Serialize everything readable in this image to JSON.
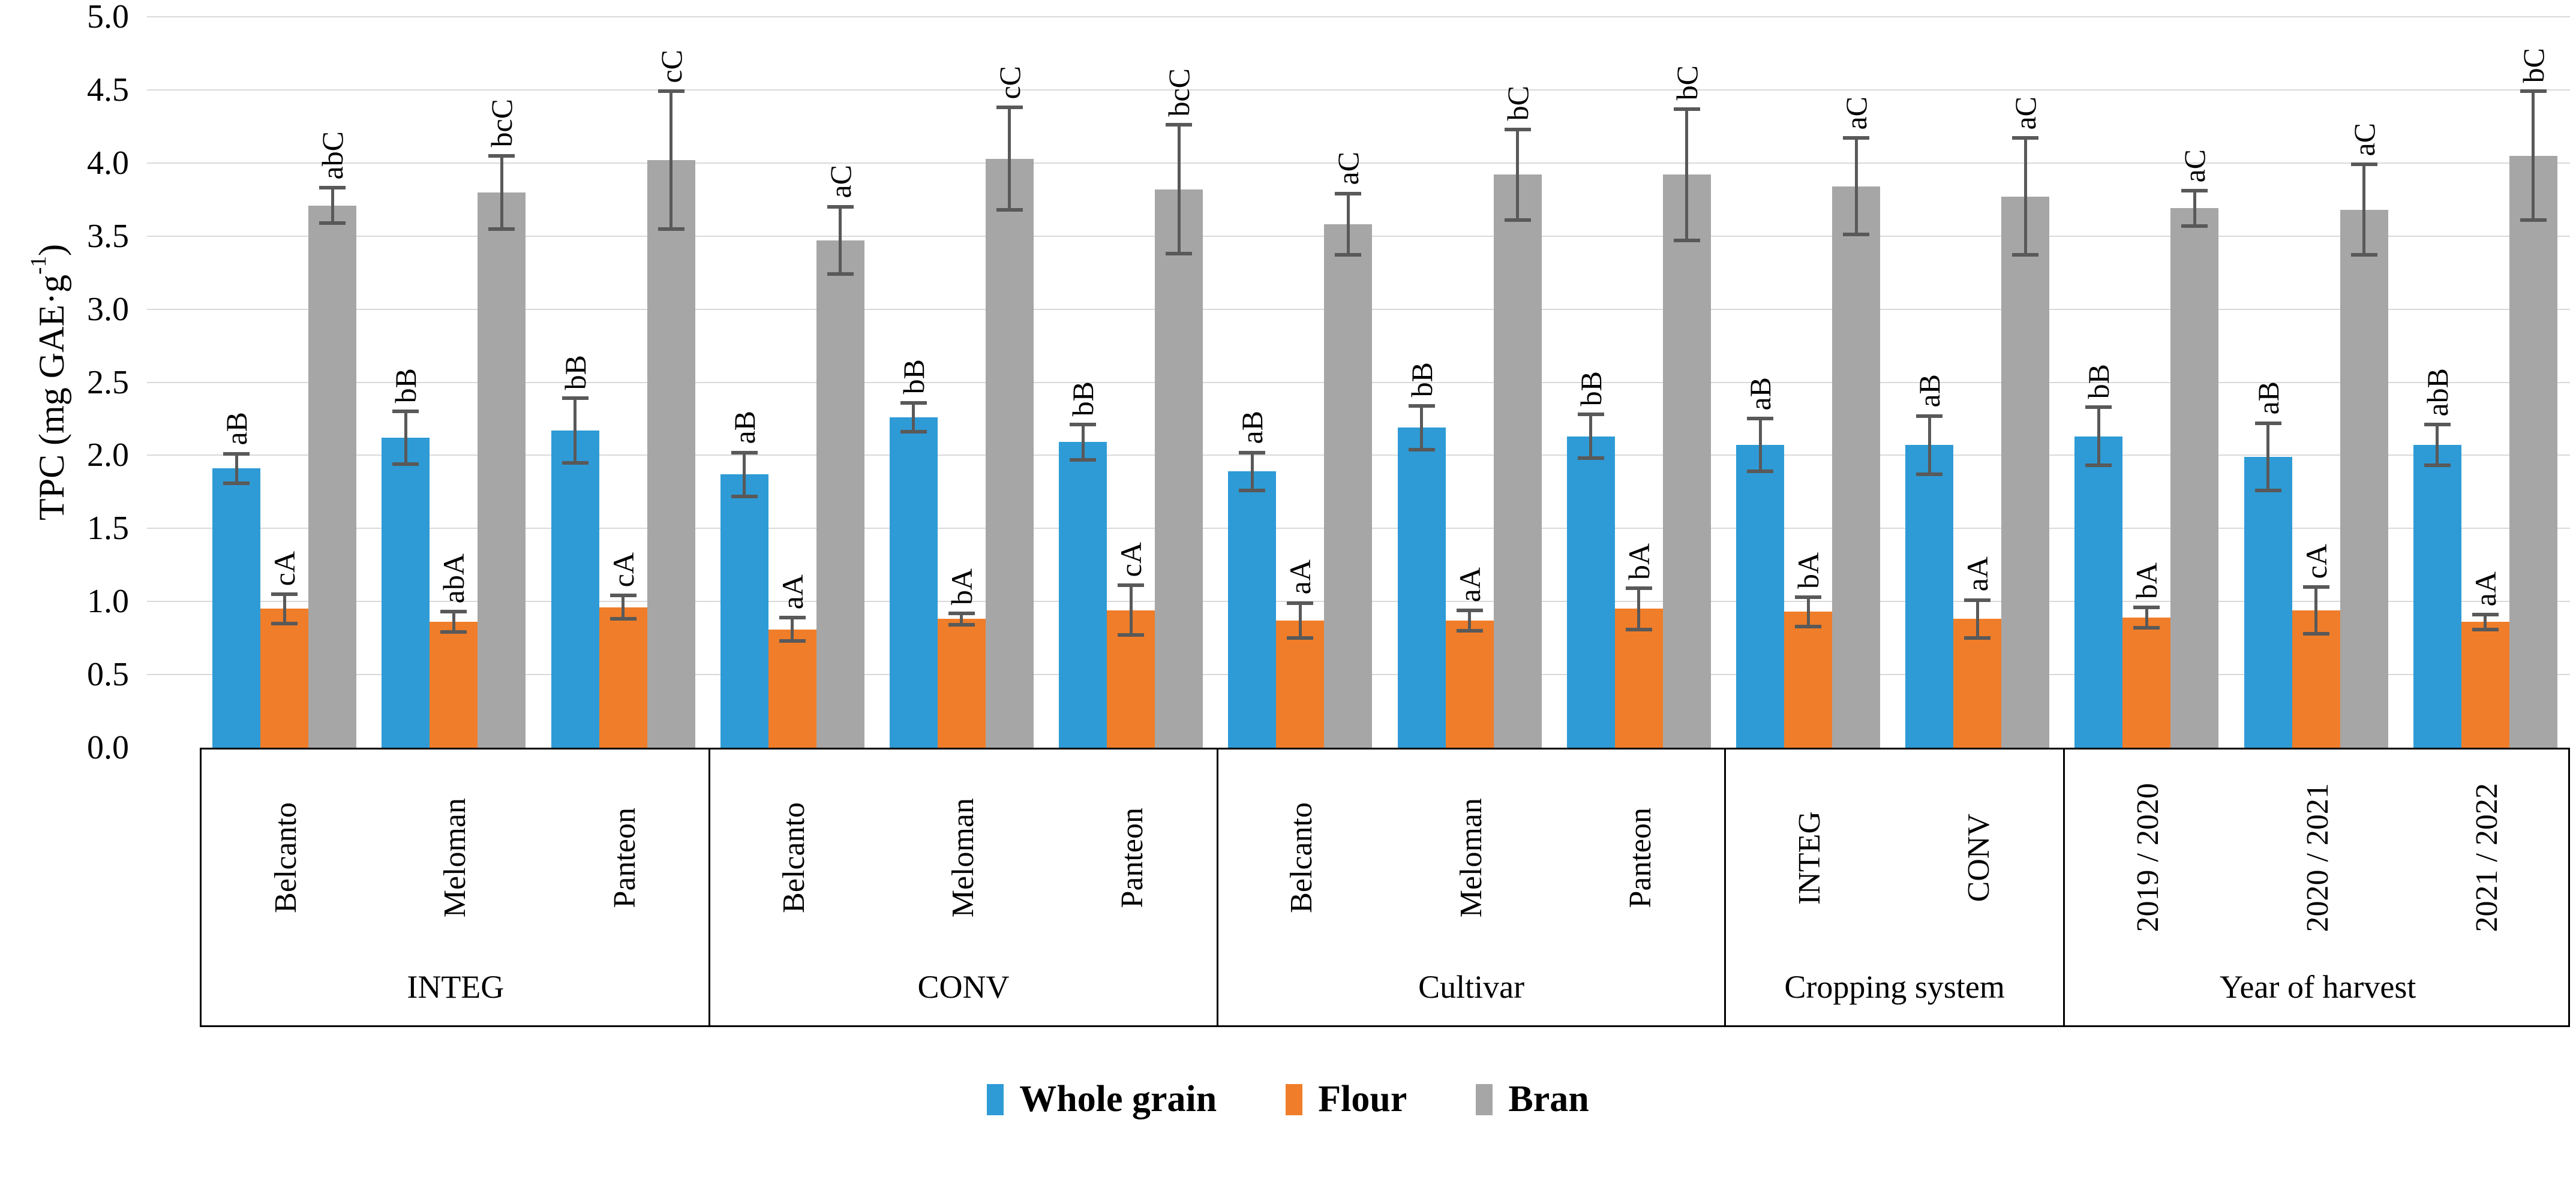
{
  "chart_data": {
    "type": "bar",
    "title": "",
    "ylabel": {
      "pre": "TPC (mg GAE·g",
      "sup": "-1",
      "post": ")"
    },
    "xlabel": "",
    "ylim": [
      0,
      5
    ],
    "ytick_step": 0.5,
    "grid": true,
    "legend_position": "bottom",
    "error_bar_color": "#595959",
    "gridline_color": "#D9D9D9",
    "series": [
      {
        "name": "Whole grain",
        "color": "#2E9BD6"
      },
      {
        "name": "Flour",
        "color": "#F07D29"
      },
      {
        "name": "Bran",
        "color": "#A6A6A6"
      }
    ],
    "groups": [
      {
        "label": "INTEG",
        "categories": [
          "Belcanto",
          "Meloman",
          "Panteon"
        ],
        "values": [
          [
            1.91,
            0.95,
            3.71
          ],
          [
            2.12,
            0.86,
            3.8
          ],
          [
            2.17,
            0.96,
            4.02
          ]
        ],
        "errors": [
          [
            0.1,
            0.1,
            0.12
          ],
          [
            0.18,
            0.07,
            0.25
          ],
          [
            0.22,
            0.08,
            0.47
          ]
        ],
        "letters": [
          [
            "aB",
            "cA",
            "abC"
          ],
          [
            "bB",
            "abA",
            "bcC"
          ],
          [
            "bB",
            "cA",
            "cC"
          ]
        ]
      },
      {
        "label": "CONV",
        "categories": [
          "Belcanto",
          "Meloman",
          "Panteon"
        ],
        "values": [
          [
            1.87,
            0.81,
            3.47
          ],
          [
            2.26,
            0.88,
            4.03
          ],
          [
            2.09,
            0.94,
            3.82
          ]
        ],
        "errors": [
          [
            0.15,
            0.08,
            0.23
          ],
          [
            0.1,
            0.04,
            0.35
          ],
          [
            0.12,
            0.17,
            0.44
          ]
        ],
        "letters": [
          [
            "aB",
            "aA",
            "aC"
          ],
          [
            "bB",
            "bA",
            "cC"
          ],
          [
            "bB",
            "cA",
            "bcC"
          ]
        ]
      },
      {
        "label": "Cultivar",
        "categories": [
          "Belcanto",
          "Meloman",
          "Panteon"
        ],
        "values": [
          [
            1.89,
            0.87,
            3.58
          ],
          [
            2.19,
            0.87,
            3.92
          ],
          [
            2.13,
            0.95,
            3.92
          ]
        ],
        "errors": [
          [
            0.13,
            0.12,
            0.21
          ],
          [
            0.15,
            0.07,
            0.31
          ],
          [
            0.15,
            0.14,
            0.45
          ]
        ],
        "letters": [
          [
            "aB",
            "aA",
            "aC"
          ],
          [
            "bB",
            "aA",
            "bC"
          ],
          [
            "bB",
            "bA",
            "bC"
          ]
        ]
      },
      {
        "label": "Cropping system",
        "categories": [
          "INTEG",
          "CONV"
        ],
        "values": [
          [
            2.07,
            0.93,
            3.84
          ],
          [
            2.07,
            0.88,
            3.77
          ]
        ],
        "errors": [
          [
            0.18,
            0.1,
            0.33
          ],
          [
            0.2,
            0.13,
            0.4
          ]
        ],
        "letters": [
          [
            "aB",
            "bA",
            "aC"
          ],
          [
            "aB",
            "aA",
            "aC"
          ]
        ]
      },
      {
        "label": "Year of harvest",
        "categories": [
          "2019 / 2020",
          "2020 / 2021",
          "2021 / 2022"
        ],
        "values": [
          [
            2.13,
            0.89,
            3.69
          ],
          [
            1.99,
            0.94,
            3.68
          ],
          [
            2.07,
            0.86,
            4.05
          ]
        ],
        "errors": [
          [
            0.2,
            0.07,
            0.12
          ],
          [
            0.23,
            0.16,
            0.31
          ],
          [
            0.14,
            0.05,
            0.44
          ]
        ],
        "letters": [
          [
            "bB",
            "bA",
            "aC"
          ],
          [
            "aB",
            "cA",
            "aC"
          ],
          [
            "abB",
            "aA",
            "bC"
          ]
        ]
      }
    ]
  },
  "legend": {
    "items": [
      {
        "label": "Whole grain",
        "color": "#2E9BD6"
      },
      {
        "label": "Flour",
        "color": "#F07D29"
      },
      {
        "label": "Bran",
        "color": "#A6A6A6"
      }
    ]
  }
}
